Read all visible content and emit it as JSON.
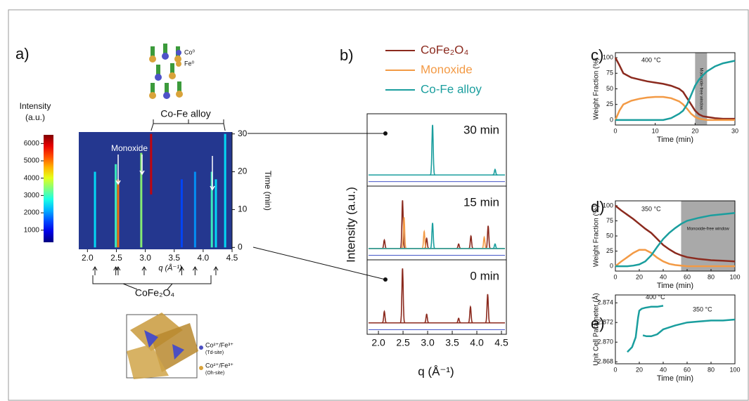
{
  "chart_data": [
    {
      "type": "heatmap",
      "label": "a)",
      "colorbar_title": [
        "Intensity",
        "(a.u.)"
      ],
      "clim": [
        300,
        6500
      ],
      "cticks": [
        1000,
        2000,
        3000,
        4000,
        5000,
        6000
      ],
      "xlabel": "q (Å⁻¹)",
      "ylabel": "Time (min)",
      "xlim": [
        1.85,
        4.5
      ],
      "xticks": [
        {
          "value": 2,
          "label": "2.0"
        },
        2.5,
        {
          "value": 3,
          "label": "3.0"
        },
        3.5,
        {
          "value": 4,
          "label": "4.0"
        },
        4.5
      ],
      "ylim": [
        -0.5,
        30.5
      ],
      "yticks": [
        0,
        10,
        20,
        30
      ],
      "streaks": [
        {
          "q": 2.13,
          "t0": 0,
          "t1": 20,
          "intensity": 2500
        },
        {
          "q": 2.49,
          "t0": 0,
          "t1": 22,
          "intensity": 3000
        },
        {
          "q": 2.53,
          "t0": 0,
          "t1": 18,
          "intensity": 5000
        },
        {
          "q": 2.93,
          "t0": 0,
          "t1": 25,
          "intensity": 3500
        },
        {
          "q": 3.1,
          "t0": 14,
          "t1": 30,
          "intensity": 6000
        },
        {
          "q": 3.63,
          "t0": 0,
          "t1": 18,
          "intensity": 1500
        },
        {
          "q": 3.86,
          "t0": 0,
          "t1": 20,
          "intensity": 2000
        },
        {
          "q": 4.15,
          "t0": 0,
          "t1": 20,
          "intensity": 3000
        },
        {
          "q": 4.22,
          "t0": 0,
          "t1": 18,
          "intensity": 2500
        },
        {
          "q": 4.38,
          "t0": 0,
          "t1": 30,
          "intensity": 2500
        }
      ],
      "annotations": {
        "monoxide": "Monoxide",
        "alloy": "Co-Fe alloy",
        "spinel": "CoFe₂O₄"
      },
      "structure_legend": {
        "co": "Co⁰",
        "fe": "Fe⁰",
        "td": [
          "Co²⁺/Fe³⁺",
          "(Td-site)"
        ],
        "oh": [
          "Co²⁺/Fe³⁺",
          "(Oh-site)"
        ]
      }
    },
    {
      "type": "diffraction",
      "label": "b)",
      "xlabel": "q (Å⁻¹)",
      "ylabel": "Intensity (a.u.)",
      "xlim": [
        1.77,
        4.6
      ],
      "ylim": [
        -20,
        110
      ],
      "xticks": [
        {
          "value": 2,
          "label": "2.0"
        },
        2.5,
        {
          "value": 3,
          "label": "3.0"
        },
        3.5,
        {
          "value": 4,
          "label": "4.0"
        },
        4.5
      ],
      "series": [
        {
          "name": "CoFe₂O₄",
          "color": "#8b2a1e"
        },
        {
          "name": "Monoxide",
          "color": "#f39a45"
        },
        {
          "name": "Co-Fe alloy",
          "color": "#1a9e9e"
        }
      ],
      "panels": [
        {
          "label": "30 min",
          "peaks": [
            [],
            [],
            [
              [
                3.1,
                90
              ],
              [
                4.37,
                10
              ]
            ]
          ]
        },
        {
          "label": "15 min",
          "peaks": [
            [
              [
                2.12,
                15
              ],
              [
                2.49,
                85
              ],
              [
                2.98,
                18
              ],
              [
                3.63,
                8
              ],
              [
                3.88,
                22
              ],
              [
                4.23,
                40
              ]
            ],
            [
              [
                2.52,
                55
              ],
              [
                2.93,
                30
              ],
              [
                4.15,
                20
              ]
            ],
            [
              [
                3.1,
                45
              ],
              [
                4.37,
                8
              ]
            ]
          ]
        },
        {
          "label": "0 min",
          "peaks": [
            [
              [
                2.12,
                20
              ],
              [
                2.49,
                95
              ],
              [
                2.98,
                15
              ],
              [
                3.63,
                8
              ],
              [
                3.87,
                28
              ],
              [
                4.22,
                50
              ]
            ],
            [],
            []
          ]
        }
      ]
    },
    {
      "type": "line",
      "label": "c)",
      "annotation": "400 °C",
      "xlabel": "Time (min)",
      "ylabel": "Weight Fraction (%)",
      "xlim": [
        0,
        30
      ],
      "xticks": [
        0,
        10,
        20,
        30
      ],
      "ylim": [
        -8,
        108
      ],
      "yticks": [
        0,
        25,
        50,
        75,
        100
      ],
      "shade": [
        20,
        23
      ],
      "shade_label": "Monoxide-free window",
      "x": [
        0,
        1,
        2,
        4,
        6,
        8,
        10,
        12,
        14,
        16,
        17,
        18,
        19,
        20,
        21,
        22,
        23,
        25,
        27,
        30
      ],
      "series": [
        {
          "color": "#8b2a1e",
          "values": [
            100,
            88,
            75,
            68,
            65,
            62,
            60,
            58,
            55,
            50,
            45,
            35,
            25,
            15,
            9,
            6,
            5,
            3,
            2,
            2
          ]
        },
        {
          "color": "#f39a45",
          "values": [
            0,
            15,
            25,
            31,
            34,
            36,
            37,
            37,
            35,
            30,
            25,
            18,
            10,
            5,
            2,
            1,
            0,
            0,
            0,
            0
          ]
        },
        {
          "color": "#1a9e9e",
          "values": [
            0,
            0,
            0,
            0,
            0,
            0,
            0,
            0,
            3,
            10,
            15,
            25,
            40,
            55,
            65,
            72,
            78,
            86,
            91,
            95
          ]
        }
      ]
    },
    {
      "type": "line",
      "label": "d)",
      "annotation": "350 °C",
      "xlabel": "Time (min)",
      "ylabel": "Weight Fraction (%)",
      "xlim": [
        0,
        100
      ],
      "xticks": [
        0,
        20,
        40,
        60,
        80,
        100
      ],
      "ylim": [
        -8,
        108
      ],
      "yticks": [
        0,
        25,
        50,
        75,
        100
      ],
      "shade": [
        55,
        100
      ],
      "shade_label": "Monoxide-free window",
      "x": [
        0,
        5,
        10,
        15,
        20,
        25,
        30,
        35,
        40,
        45,
        50,
        55,
        60,
        70,
        80,
        90,
        100
      ],
      "series": [
        {
          "color": "#8b2a1e",
          "values": [
            100,
            92,
            85,
            78,
            70,
            62,
            55,
            45,
            35,
            28,
            22,
            18,
            15,
            12,
            10,
            9,
            8
          ]
        },
        {
          "color": "#f39a45",
          "values": [
            0,
            8,
            15,
            22,
            27,
            27,
            22,
            14,
            8,
            4,
            2,
            1,
            0,
            0,
            0,
            0,
            0
          ]
        },
        {
          "color": "#1a9e9e",
          "values": [
            0,
            0,
            0,
            1,
            3,
            8,
            18,
            32,
            45,
            55,
            63,
            70,
            75,
            80,
            84,
            86,
            88
          ]
        }
      ]
    },
    {
      "type": "line",
      "label": "e)",
      "xlabel": "Time (min)",
      "ylabel": "Unit Cell Parameter (Å)",
      "xlim": [
        0,
        100
      ],
      "xticks": [
        0,
        20,
        40,
        60,
        80,
        100
      ],
      "ylim": [
        2.8678,
        2.8748
      ],
      "yticks": [
        {
          "value": 2.868,
          "label": "2.868"
        },
        {
          "value": 2.87,
          "label": "2.870"
        },
        {
          "value": 2.872,
          "label": "2.872"
        },
        {
          "value": 2.874,
          "label": "2.874"
        }
      ],
      "series": [
        {
          "name": "400 °C",
          "color": "#1a9e9e",
          "x": [
            10,
            14,
            17,
            19,
            20,
            22,
            25,
            30,
            35,
            40
          ],
          "values": [
            2.869,
            2.8695,
            2.8705,
            2.8725,
            2.8732,
            2.8734,
            2.8735,
            2.8736,
            2.8736,
            2.8737
          ]
        },
        {
          "name": "350 °C",
          "color": "#1a9e9e",
          "x": [
            23,
            26,
            30,
            35,
            40,
            50,
            60,
            70,
            80,
            90,
            100
          ],
          "values": [
            2.8707,
            2.8706,
            2.8706,
            2.8708,
            2.8713,
            2.8717,
            2.872,
            2.8721,
            2.8722,
            2.8722,
            2.8723
          ]
        }
      ]
    }
  ]
}
